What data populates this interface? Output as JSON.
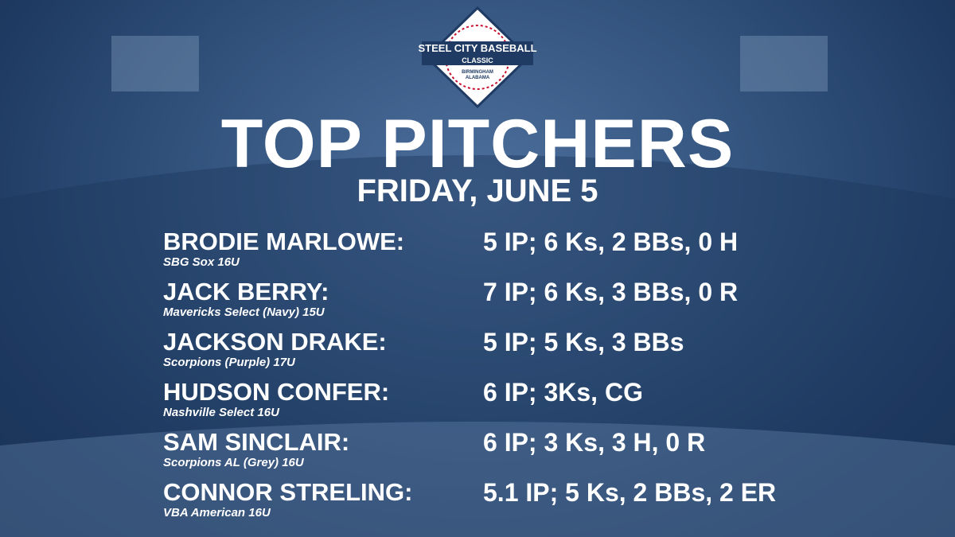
{
  "logo": {
    "line1": "STEEL CITY BASEBALL",
    "line2": "CLASSIC",
    "city": "BIRMINGHAM",
    "state": "ALABAMA"
  },
  "header": {
    "title": "TOP PITCHERS",
    "subtitle": "FRIDAY, JUNE 5"
  },
  "pitchers": [
    {
      "name": "BRODIE MARLOWE:",
      "team": "SBG Sox 16U",
      "stats": "5 IP; 6 Ks, 2 BBs, 0 H"
    },
    {
      "name": "JACK BERRY:",
      "team": "Mavericks Select (Navy) 15U",
      "stats": "7 IP; 6 Ks, 3 BBs, 0 R"
    },
    {
      "name": "JACKSON DRAKE:",
      "team": "Scorpions (Purple) 17U",
      "stats": "5 IP; 5 Ks, 3 BBs"
    },
    {
      "name": "HUDSON CONFER:",
      "team": "Nashville Select 16U",
      "stats": "6 IP; 3Ks, CG"
    },
    {
      "name": "SAM SINCLAIR:",
      "team": "Scorpions AL (Grey) 16U",
      "stats": "6 IP; 3 Ks, 3 H, 0 R"
    },
    {
      "name": "CONNOR STRELING:",
      "team": "VBA American 16U",
      "stats": "5.1 IP; 5 Ks, 2 BBs, 2 ER"
    }
  ]
}
